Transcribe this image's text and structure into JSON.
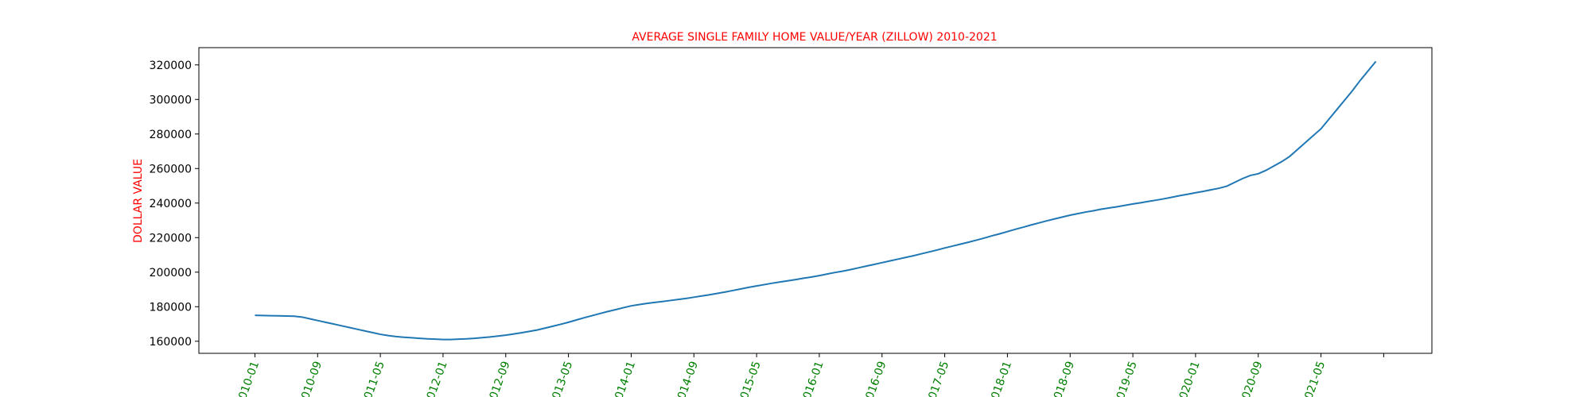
{
  "chart_data": {
    "type": "line",
    "title": "AVERAGE SINGLE FAMILY HOME VALUE/YEAR (ZILLOW) 2010-2021",
    "y_label": "DOLLAR VALUE",
    "title_color": "#ff0000",
    "tick_label_color": "#008000",
    "x": [
      "2010-01",
      "2010-02",
      "2010-03",
      "2010-04",
      "2010-05",
      "2010-06",
      "2010-07",
      "2010-08",
      "2010-09",
      "2010-10",
      "2010-11",
      "2010-12",
      "2011-01",
      "2011-02",
      "2011-03",
      "2011-04",
      "2011-05",
      "2011-06",
      "2011-07",
      "2011-08",
      "2011-09",
      "2011-10",
      "2011-11",
      "2011-12",
      "2012-01",
      "2012-02",
      "2012-03",
      "2012-04",
      "2012-05",
      "2012-06",
      "2012-07",
      "2012-08",
      "2012-09",
      "2012-10",
      "2012-11",
      "2012-12",
      "2013-01",
      "2013-02",
      "2013-03",
      "2013-04",
      "2013-05",
      "2013-06",
      "2013-07",
      "2013-08",
      "2013-09",
      "2013-10",
      "2013-11",
      "2013-12",
      "2014-01",
      "2014-02",
      "2014-03",
      "2014-04",
      "2014-05",
      "2014-06",
      "2014-07",
      "2014-08",
      "2014-09",
      "2014-10",
      "2014-11",
      "2014-12",
      "2015-01",
      "2015-02",
      "2015-03",
      "2015-04",
      "2015-05",
      "2015-06",
      "2015-07",
      "2015-08",
      "2015-09",
      "2015-10",
      "2015-11",
      "2015-12",
      "2016-01",
      "2016-02",
      "2016-03",
      "2016-04",
      "2016-05",
      "2016-06",
      "2016-07",
      "2016-08",
      "2016-09",
      "2016-10",
      "2016-11",
      "2016-12",
      "2017-01",
      "2017-02",
      "2017-03",
      "2017-04",
      "2017-05",
      "2017-06",
      "2017-07",
      "2017-08",
      "2017-09",
      "2017-10",
      "2017-11",
      "2017-12",
      "2018-01",
      "2018-02",
      "2018-03",
      "2018-04",
      "2018-05",
      "2018-06",
      "2018-07",
      "2018-08",
      "2018-09",
      "2018-10",
      "2018-11",
      "2018-12",
      "2019-01",
      "2019-02",
      "2019-03",
      "2019-04",
      "2019-05",
      "2019-06",
      "2019-07",
      "2019-08",
      "2019-09",
      "2019-10",
      "2019-11",
      "2019-12",
      "2020-01",
      "2020-02",
      "2020-03",
      "2020-04",
      "2020-05",
      "2020-06",
      "2020-07",
      "2020-08",
      "2020-09",
      "2020-10",
      "2020-11",
      "2020-12",
      "2021-01",
      "2021-02",
      "2021-03",
      "2021-04",
      "2021-05",
      "2021-06",
      "2021-07",
      "2021-08",
      "2021-09",
      "2021-10",
      "2021-11",
      "2021-12"
    ],
    "series": [
      {
        "color": "#1f77b4",
        "values": [
          175000,
          174900,
          174800,
          174700,
          174600,
          174500,
          174000,
          173000,
          172000,
          171000,
          170000,
          169000,
          168000,
          167000,
          166000,
          165000,
          164000,
          163300,
          162700,
          162300,
          162000,
          161700,
          161400,
          161200,
          161000,
          161000,
          161200,
          161400,
          161700,
          162100,
          162500,
          163000,
          163500,
          164200,
          164900,
          165700,
          166500,
          167600,
          168700,
          169800,
          171000,
          172300,
          173600,
          174800,
          176000,
          177200,
          178300,
          179400,
          180500,
          181200,
          181900,
          182500,
          183000,
          183600,
          184200,
          184800,
          185500,
          186200,
          186900,
          187700,
          188500,
          189400,
          190300,
          191200,
          192000,
          192800,
          193600,
          194300,
          195000,
          195700,
          196500,
          197200,
          198000,
          198900,
          199800,
          200600,
          201500,
          202500,
          203500,
          204500,
          205500,
          206500,
          207500,
          208500,
          209500,
          210600,
          211700,
          212800,
          214000,
          215100,
          216200,
          217300,
          218500,
          219700,
          221000,
          222200,
          223500,
          224800,
          226000,
          227300,
          228500,
          229700,
          230800,
          231900,
          233000,
          233900,
          234800,
          235600,
          236500,
          237200,
          237900,
          238700,
          239500,
          240200,
          241000,
          241700,
          242500,
          243400,
          244300,
          245100,
          246000,
          246800,
          247700,
          248600,
          249800,
          252000,
          254200,
          256000,
          257000,
          259000,
          261500,
          264000,
          267000,
          271000,
          275000,
          279000,
          283000,
          288500,
          294000,
          299500,
          305000,
          311000,
          316500,
          322000
        ]
      }
    ],
    "xticks": [
      "2010-01",
      "2010-09",
      "2011-05",
      "2012-01",
      "2012-09",
      "2013-05",
      "2014-01",
      "2014-09",
      "2015-05",
      "2016-01",
      "2016-09",
      "2017-05",
      "2018-01",
      "2018-09",
      "2019-05",
      "2020-01",
      "2020-09",
      "2021-05",
      null
    ],
    "ylim": [
      153000,
      330000
    ],
    "yticks": [
      160000,
      180000,
      200000,
      220000,
      240000,
      260000,
      280000,
      300000,
      320000
    ]
  }
}
